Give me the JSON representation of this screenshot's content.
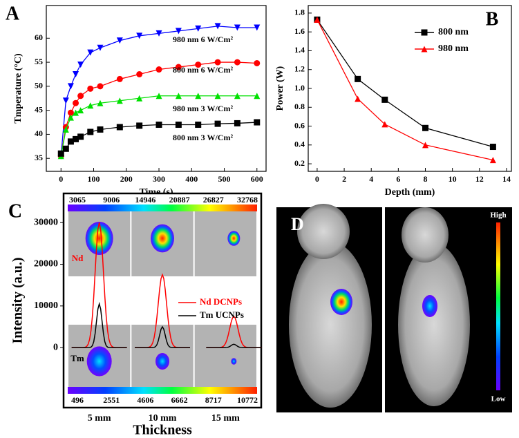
{
  "chart_data": [
    {
      "type": "line",
      "label": "A",
      "xlabel": "Time (s)",
      "ylabel": "Tmperature (°C)",
      "x": [
        0,
        15,
        30,
        45,
        60,
        90,
        120,
        180,
        240,
        300,
        360,
        420,
        480,
        540,
        600
      ],
      "xlim": [
        -45,
        628
      ],
      "ylim": [
        32.3,
        66.8
      ],
      "xticks": [
        0,
        100,
        200,
        300,
        400,
        500,
        600
      ],
      "yticks": [
        35,
        40,
        45,
        50,
        55,
        60
      ],
      "series": [
        {
          "name": "980 nm  6 W/Cm²",
          "color": "#0000ff",
          "marker": "triangle-down",
          "values": [
            35.5,
            47,
            50,
            52.5,
            54.5,
            57,
            58,
            59.5,
            60.5,
            61,
            61.5,
            62,
            62.5,
            62.2,
            62.2
          ]
        },
        {
          "name": "800 nm  6 W/Cm²",
          "color": "#ff0000",
          "marker": "circle",
          "values": [
            35.5,
            41.5,
            44.5,
            46.5,
            48,
            49.5,
            50,
            51.5,
            52.5,
            53.5,
            54,
            54.5,
            55,
            55,
            54.8
          ]
        },
        {
          "name": "980 nm  3 W/Cm²",
          "color": "#00e000",
          "marker": "triangle-up",
          "values": [
            35.5,
            41,
            43.5,
            44.5,
            45,
            46,
            46.5,
            47,
            47.5,
            48,
            48,
            48,
            48,
            48,
            48
          ]
        },
        {
          "name": "800 nm  3 W/Cm²",
          "color": "#000000",
          "marker": "square",
          "values": [
            36,
            37,
            38.5,
            39,
            39.5,
            40.5,
            41,
            41.5,
            41.8,
            42,
            42,
            42,
            42.2,
            42.3,
            42.5
          ]
        }
      ]
    },
    {
      "type": "line",
      "label": "B",
      "xlabel": "Depth (mm)",
      "ylabel": "Power (W)",
      "legend": "upper right",
      "x": [
        0,
        3,
        5,
        8,
        13
      ],
      "xlim": [
        -0.66,
        14.36
      ],
      "ylim": [
        0.12,
        1.88
      ],
      "xticks": [
        0,
        2,
        4,
        6,
        8,
        10,
        12,
        14
      ],
      "yticks": [
        0.2,
        0.4,
        0.6,
        0.8,
        {
          "value": 1,
          "label": "1.0"
        },
        1.2,
        1.4,
        1.6,
        1.8
      ],
      "series": [
        {
          "name": "800 nm",
          "color": "#000000",
          "marker": "square",
          "values": [
            1.73,
            1.1,
            0.88,
            0.58,
            0.38
          ]
        },
        {
          "name": "980 nm",
          "color": "#ff0000",
          "marker": "triangle-up",
          "values": [
            1.73,
            0.89,
            0.62,
            0.4,
            0.24
          ]
        }
      ]
    },
    {
      "type": "spectrum",
      "label": "C",
      "xlabel": "Thickness",
      "ylabel": "Intensity (a.u.)",
      "categories": [
        "5 mm",
        "10 mm",
        "15 mm"
      ],
      "ylim": [
        -14400,
        37000
      ],
      "yticks": [
        0,
        10000,
        20000,
        30000
      ],
      "colorbar_top": [
        3065,
        9006,
        14946,
        20887,
        26827,
        32768
      ],
      "colorbar_bottom": [
        496,
        2551,
        4606,
        6662,
        8717,
        10772
      ],
      "tags": [
        "Nd",
        "Tm"
      ],
      "series": [
        {
          "name": "Nd DCNPs",
          "color": "#ff0000",
          "values": [
            30000,
            17500,
            7500
          ]
        },
        {
          "name": "Tm UCNPs",
          "color": "#000000",
          "values": [
            10500,
            5000,
            800
          ]
        }
      ]
    }
  ],
  "panel_d": {
    "label": "D",
    "high": "High",
    "low": "Low"
  }
}
